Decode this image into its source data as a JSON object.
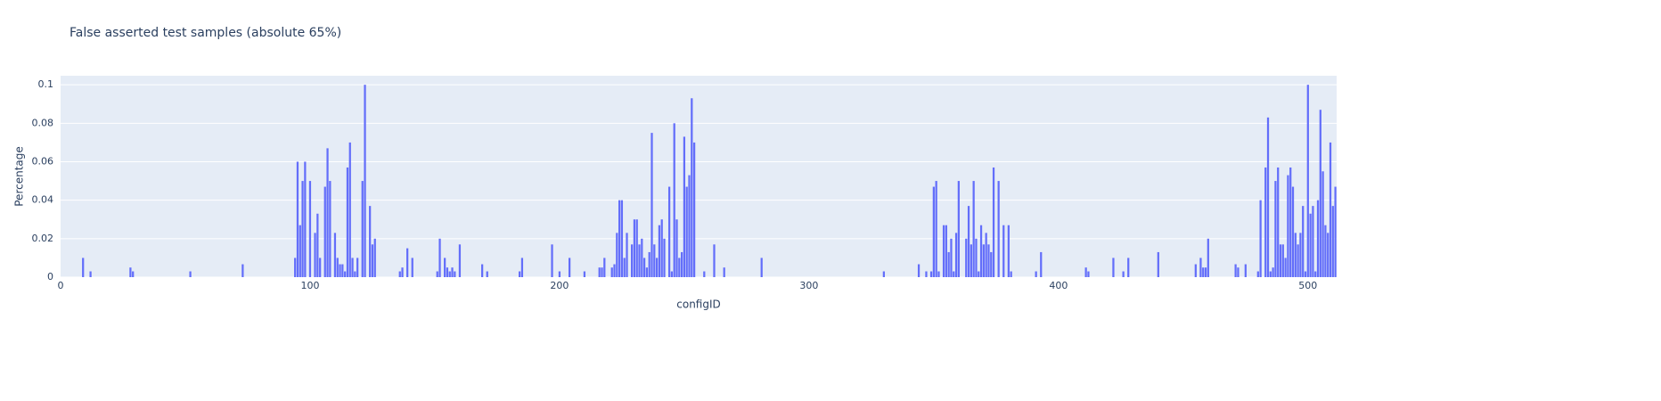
{
  "chart_data": {
    "type": "bar",
    "title": "False asserted test samples (absolute 65%)",
    "xlabel": "configID",
    "ylabel": "Percentage",
    "color": "#636efa",
    "grid": true,
    "x": [
      9,
      12,
      28,
      29,
      52,
      73,
      94,
      95,
      96,
      97,
      98,
      100,
      102,
      103,
      104,
      106,
      107,
      108,
      110,
      111,
      112,
      113,
      114,
      115,
      116,
      117,
      118,
      119,
      121,
      122,
      124,
      125,
      126,
      136,
      137,
      139,
      141,
      151,
      152,
      154,
      155,
      156,
      157,
      158,
      160,
      169,
      171,
      184,
      185,
      197,
      200,
      204,
      210,
      216,
      217,
      218,
      221,
      222,
      223,
      224,
      225,
      226,
      227,
      229,
      230,
      231,
      232,
      233,
      234,
      235,
      236,
      237,
      238,
      239,
      240,
      241,
      242,
      244,
      245,
      246,
      247,
      248,
      249,
      250,
      251,
      252,
      253,
      254,
      258,
      262,
      266,
      281,
      330,
      344,
      347,
      349,
      350,
      351,
      352,
      354,
      355,
      356,
      357,
      358,
      359,
      360,
      363,
      364,
      365,
      366,
      367,
      368,
      369,
      370,
      371,
      372,
      373,
      374,
      376,
      378,
      380,
      381,
      391,
      393,
      411,
      412,
      422,
      426,
      428,
      440,
      455,
      457,
      458,
      459,
      460,
      471,
      472,
      475,
      480,
      481,
      483,
      484,
      485,
      486,
      487,
      488,
      489,
      490,
      491,
      492,
      493,
      494,
      495,
      496,
      497,
      498,
      499,
      500,
      501,
      502,
      503,
      504,
      505,
      506,
      507,
      508,
      509,
      510,
      511
    ],
    "values": [
      0.01,
      0.003,
      0.005,
      0.003,
      0.003,
      0.0067,
      0.01,
      0.06,
      0.027,
      0.05,
      0.06,
      0.05,
      0.023,
      0.033,
      0.01,
      0.047,
      0.067,
      0.05,
      0.023,
      0.01,
      0.0067,
      0.0067,
      0.003,
      0.057,
      0.07,
      0.01,
      0.003,
      0.01,
      0.05,
      0.1,
      0.037,
      0.017,
      0.02,
      0.003,
      0.005,
      0.015,
      0.01,
      0.003,
      0.02,
      0.01,
      0.005,
      0.003,
      0.005,
      0.003,
      0.017,
      0.0067,
      0.003,
      0.003,
      0.01,
      0.017,
      0.003,
      0.01,
      0.003,
      0.005,
      0.005,
      0.01,
      0.005,
      0.0067,
      0.023,
      0.04,
      0.04,
      0.01,
      0.023,
      0.017,
      0.03,
      0.03,
      0.017,
      0.02,
      0.01,
      0.005,
      0.013,
      0.075,
      0.017,
      0.01,
      0.027,
      0.03,
      0.02,
      0.047,
      0.003,
      0.08,
      0.03,
      0.01,
      0.013,
      0.073,
      0.047,
      0.053,
      0.093,
      0.07,
      0.003,
      0.017,
      0.005,
      0.01,
      0.003,
      0.0067,
      0.003,
      0.003,
      0.047,
      0.05,
      0.003,
      0.027,
      0.027,
      0.013,
      0.02,
      0.003,
      0.023,
      0.05,
      0.02,
      0.037,
      0.017,
      0.05,
      0.02,
      0.003,
      0.027,
      0.017,
      0.023,
      0.017,
      0.013,
      0.057,
      0.05,
      0.027,
      0.027,
      0.003,
      0.003,
      0.013,
      0.005,
      0.003,
      0.01,
      0.003,
      0.01,
      0.013,
      0.0067,
      0.01,
      0.005,
      0.005,
      0.02,
      0.0067,
      0.005,
      0.0067,
      0.003,
      0.04,
      0.057,
      0.083,
      0.003,
      0.005,
      0.05,
      0.057,
      0.017,
      0.017,
      0.01,
      0.053,
      0.057,
      0.047,
      0.023,
      0.017,
      0.023,
      0.037,
      0.003,
      0.1,
      0.033,
      0.037,
      0.003,
      0.04,
      0.087,
      0.055,
      0.027,
      0.023,
      0.07,
      0.037,
      0.047
    ],
    "xlim": [
      0,
      511.5
    ],
    "ylim": [
      0,
      0.1047
    ],
    "xticks": [
      0,
      100,
      200,
      300,
      400,
      500
    ],
    "yticks": [
      0,
      0.02,
      0.04,
      0.06,
      0.08,
      0.1
    ]
  }
}
